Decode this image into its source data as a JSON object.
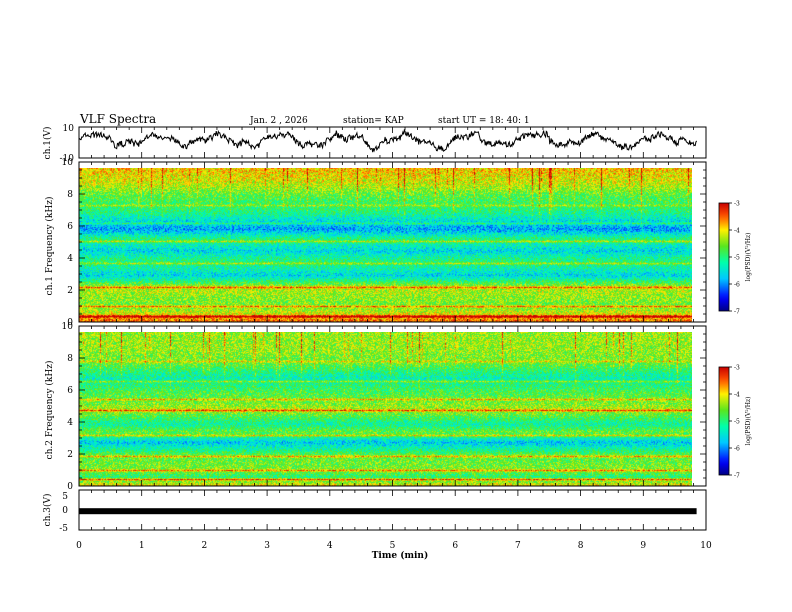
{
  "header": {
    "title": "VLF Spectra",
    "date": "Jan. 2 , 2026",
    "station": "station= KAP",
    "start": "start UT = 18: 40: 1"
  },
  "chart_data": [
    {
      "panel": "ch1-waveform",
      "type": "line",
      "ylabel": "ch.1(V)",
      "ylim": [
        -10,
        10
      ],
      "yticks": [
        "10",
        "-10"
      ],
      "description_values": "noisy waveform oscillating roughly between -6 and 8 V",
      "xlim": [
        0,
        10
      ]
    },
    {
      "panel": "ch1-spectrogram",
      "type": "heatmap",
      "ylabel": "ch.1 Frequency (kHz)",
      "ylim": [
        0,
        10
      ],
      "yticks": [
        "0",
        "2",
        "4",
        "6",
        "8",
        "10"
      ],
      "xlim": [
        0,
        10
      ],
      "colorbar": {
        "label": "log(PSD)(V²/Hz)",
        "range": [
          -7,
          -3
        ],
        "ticks": [
          "-3",
          "-4",
          "-5",
          "-6",
          "-7"
        ]
      },
      "band_profile": [
        [
          0.0,
          -3.5
        ],
        [
          0.4,
          -4.0
        ],
        [
          1.0,
          -4.6
        ],
        [
          2.0,
          -4.3
        ],
        [
          2.3,
          -4.4
        ],
        [
          3.0,
          -5.6
        ],
        [
          3.5,
          -5.2
        ],
        [
          4.0,
          -5.0
        ],
        [
          4.6,
          -5.6
        ],
        [
          5.4,
          -5.0
        ],
        [
          6.0,
          -5.9
        ],
        [
          6.6,
          -5.5
        ],
        [
          7.2,
          -5.0
        ],
        [
          8.2,
          -4.7
        ],
        [
          9.0,
          -4.2
        ],
        [
          10.0,
          -3.9
        ]
      ]
    },
    {
      "panel": "ch2-spectrogram",
      "type": "heatmap",
      "ylabel": "ch.2 Frequency (kHz)",
      "ylim": [
        0,
        10
      ],
      "yticks": [
        "0",
        "2",
        "4",
        "6",
        "8",
        "10"
      ],
      "xlim": [
        0,
        10
      ],
      "colorbar": {
        "label": "log(PSD)(V²/Hz)",
        "range": [
          -7,
          -3
        ],
        "ticks": [
          "-3",
          "-4",
          "-5",
          "-6",
          "-7"
        ]
      },
      "band_profile": [
        [
          0.0,
          -4.0
        ],
        [
          0.5,
          -5.0
        ],
        [
          1.0,
          -4.5
        ],
        [
          2.0,
          -4.7
        ],
        [
          2.8,
          -5.7
        ],
        [
          3.5,
          -4.6
        ],
        [
          4.0,
          -5.2
        ],
        [
          5.0,
          -4.3
        ],
        [
          5.5,
          -4.6
        ],
        [
          6.2,
          -4.8
        ],
        [
          7.0,
          -5.3
        ],
        [
          8.0,
          -4.6
        ],
        [
          9.0,
          -4.4
        ],
        [
          10.0,
          -4.4
        ]
      ]
    },
    {
      "panel": "ch3-waveform",
      "type": "line",
      "ylabel": "ch.3(V)",
      "ylim": [
        -5,
        5
      ],
      "yticks": [
        "5",
        "0",
        "-5"
      ],
      "constant_value": -0.3,
      "xlim": [
        0,
        10
      ]
    }
  ],
  "xaxis": {
    "label": "Time (min)",
    "ticks": [
      "0",
      "1",
      "2",
      "3",
      "4",
      "5",
      "6",
      "7",
      "8",
      "9",
      "10"
    ],
    "max_data_time": 9.85
  }
}
